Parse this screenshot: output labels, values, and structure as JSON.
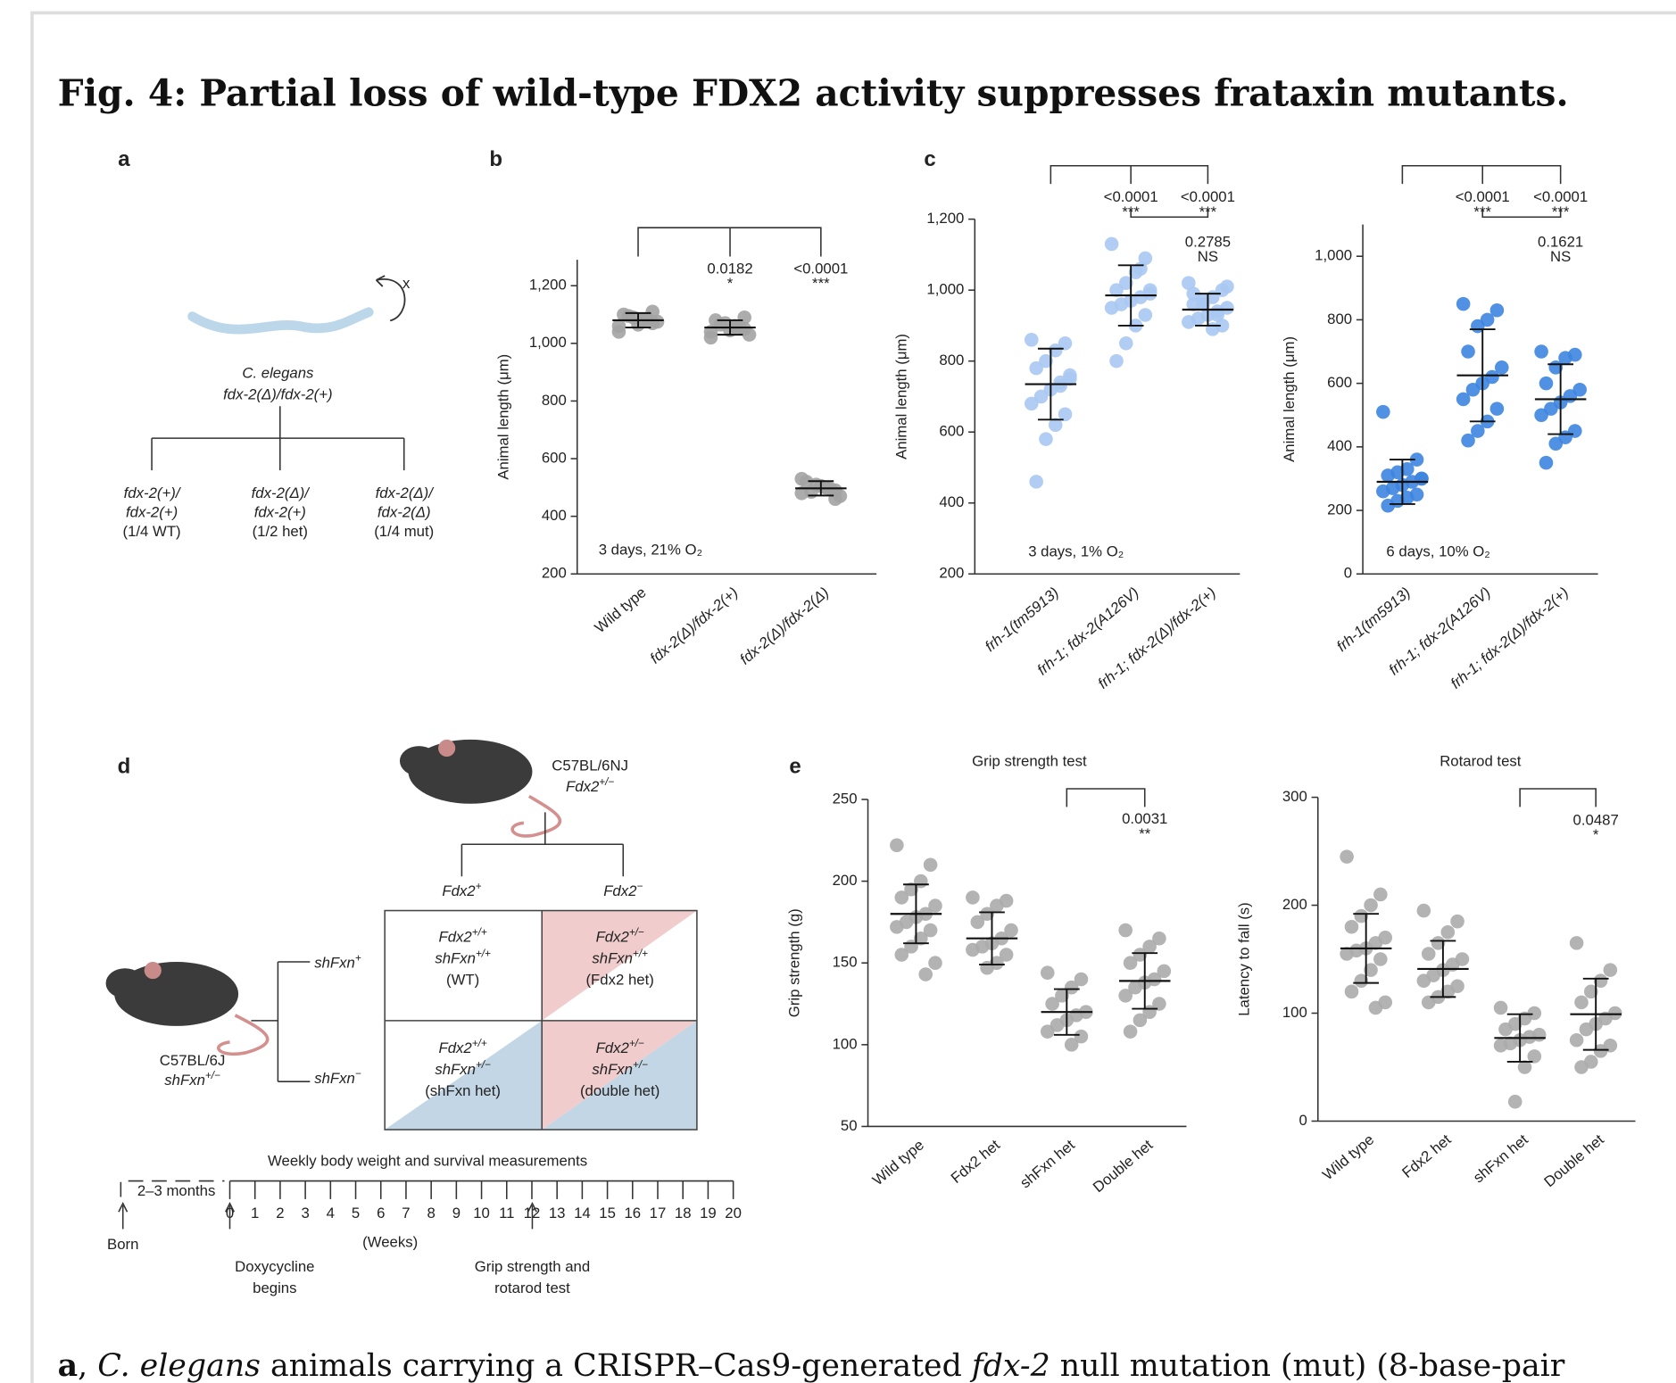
{
  "title": "Fig. 4: Partial loss of wild-type FDX2 activity suppresses frataxin mutants.",
  "panel_labels": [
    "a",
    "b",
    "c",
    "d",
    "e"
  ],
  "panel_a": {
    "organism": "C. elegans",
    "genotype": "fdx-2(Δ)/fdx-2(+)",
    "self_cross": "x",
    "offspring": [
      [
        "fdx-2(+)/",
        "fdx-2(+)",
        "(1/4 WT)"
      ],
      [
        "fdx-2(Δ)/",
        "fdx-2(+)",
        "(1/2 het)"
      ],
      [
        "fdx-2(Δ)/",
        "fdx-2(Δ)",
        "(1/4 mut)"
      ]
    ]
  },
  "chart_data": [
    {
      "type": "dot",
      "ylabel": "Animal length (μm)",
      "condition": "3 days, 21% O₂",
      "color": "#a3a3a3",
      "categories": [
        "Wild type",
        "fdx-2(Δ)/fdx-2(+)",
        "fdx-2(Δ)/fdx-2(Δ)"
      ],
      "values": [
        1080,
        1055,
        497
      ],
      "errors": [
        25,
        25,
        25
      ],
      "points": [
        [
          1060,
          1070,
          1080,
          1090,
          1100,
          1075,
          1085,
          1065,
          1095,
          1040,
          1110,
          1080
        ],
        [
          1040,
          1050,
          1060,
          1070,
          1080,
          1030,
          1055,
          1045,
          1065,
          1020,
          1090,
          1060
        ],
        [
          480,
          490,
          500,
          510,
          520,
          470,
          495,
          505,
          485,
          530,
          460,
          500
        ]
      ],
      "ylim": [
        200,
        1290
      ],
      "yticks": [
        200,
        400,
        600,
        800,
        {
          "value": 1000,
          "label": "1,000"
        },
        {
          "value": 1200,
          "label": "1,200"
        }
      ],
      "annotations": [
        {
          "p": "0.0182",
          "sig": "*"
        },
        {
          "p": "<0.0001",
          "sig": "***"
        }
      ]
    },
    {
      "type": "dot",
      "ylabel": "Animal length (μm)",
      "condition": "3 days, 1% O₂",
      "color": "#a9c8f2",
      "categories": [
        "frh-1(tm5913)",
        "frh-1; fdx-2(A126V)",
        "frh-1; fdx-2(Δ)/fdx-2(+)"
      ],
      "values": [
        735,
        985,
        945
      ],
      "errors": [
        100,
        85,
        45
      ],
      "points": [
        [
          860,
          850,
          830,
          800,
          780,
          760,
          740,
          720,
          700,
          680,
          650,
          620,
          580,
          460,
          750,
          730
        ],
        [
          1130,
          1090,
          1050,
          1020,
          1000,
          990,
          980,
          970,
          960,
          950,
          930,
          900,
          850,
          800,
          1000,
          1060
        ],
        [
          1020,
          1000,
          980,
          970,
          960,
          950,
          940,
          930,
          920,
          910,
          900,
          890,
          960,
          990,
          1010,
          930
        ]
      ],
      "ylim": [
        200,
        1200
      ],
      "yticks": [
        200,
        400,
        600,
        800,
        {
          "value": 1000,
          "label": "1,000"
        },
        {
          "value": 1200,
          "label": "1,200"
        }
      ],
      "annotations": [
        {
          "p": "<0.0001",
          "sig": "***"
        },
        {
          "p": "<0.0001",
          "sig": "***"
        },
        {
          "p": "0.2785",
          "sig": "NS"
        }
      ]
    },
    {
      "type": "dot",
      "ylabel": "Animal length (μm)",
      "condition": "6 days, 10% O₂",
      "color": "#3d85e0",
      "categories": [
        "frh-1(tm5913)",
        "frh-1; fdx-2(A126V)",
        "frh-1; fdx-2(Δ)/fdx-2(+)"
      ],
      "values": [
        290,
        625,
        550
      ],
      "errors": [
        70,
        145,
        110
      ],
      "points": [
        [
          510,
          360,
          330,
          320,
          310,
          300,
          290,
          280,
          270,
          260,
          250,
          240,
          230,
          215,
          300
        ],
        [
          850,
          830,
          800,
          780,
          700,
          650,
          620,
          600,
          580,
          550,
          520,
          480,
          450,
          420
        ],
        [
          700,
          690,
          680,
          650,
          600,
          580,
          560,
          540,
          520,
          500,
          450,
          430,
          410,
          350
        ]
      ],
      "ylim": [
        0,
        1100
      ],
      "yticks": [
        0,
        200,
        400,
        600,
        800,
        {
          "value": 1000,
          "label": "1,000"
        }
      ],
      "annotations": [
        {
          "p": "<0.0001",
          "sig": "***"
        },
        {
          "p": "<0.0001",
          "sig": "***"
        },
        {
          "p": "0.1621",
          "sig": "NS"
        }
      ]
    },
    {
      "type": "dot",
      "title": "Grip strength test",
      "ylabel": "Grip strength (g)",
      "color": "#ababab",
      "categories": [
        "Wild type",
        "Fdx2 het",
        "shFxn het",
        "Double het"
      ],
      "values": [
        180,
        165,
        120,
        139
      ],
      "errors": [
        18,
        16,
        14,
        17
      ],
      "points": [
        [
          222,
          210,
          200,
          195,
          190,
          185,
          180,
          178,
          175,
          172,
          170,
          165,
          160,
          155,
          150,
          143
        ],
        [
          190,
          188,
          185,
          180,
          175,
          170,
          165,
          162,
          160,
          158,
          155,
          150,
          147
        ],
        [
          144,
          140,
          135,
          130,
          125,
          120,
          118,
          115,
          112,
          108,
          105,
          100
        ],
        [
          170,
          165,
          160,
          155,
          150,
          145,
          140,
          138,
          135,
          130,
          125,
          120,
          115,
          108
        ]
      ],
      "ylim": [
        50,
        250
      ],
      "yticks": [
        50,
        100,
        150,
        200,
        250
      ],
      "annotations": [
        {
          "p": "0.0031",
          "sig": "**"
        }
      ]
    },
    {
      "type": "dot",
      "title": "Rotarod test",
      "ylabel": "Latency to fall (s)",
      "color": "#ababab",
      "categories": [
        "Wild type",
        "Fdx2 het",
        "shFxn het",
        "Double het"
      ],
      "values": [
        160,
        141,
        77,
        99
      ],
      "errors": [
        32,
        26,
        22,
        33
      ],
      "points": [
        [
          245,
          210,
          200,
          190,
          180,
          170,
          165,
          160,
          158,
          155,
          150,
          140,
          130,
          120,
          110,
          105
        ],
        [
          195,
          185,
          175,
          165,
          155,
          150,
          145,
          140,
          135,
          130,
          125,
          120,
          115,
          110
        ],
        [
          105,
          100,
          95,
          90,
          85,
          80,
          78,
          75,
          72,
          70,
          60,
          50,
          18
        ],
        [
          165,
          140,
          130,
          120,
          110,
          100,
          95,
          90,
          85,
          75,
          70,
          65,
          55,
          50
        ]
      ],
      "ylim": [
        0,
        300
      ],
      "yticks": [
        0,
        100,
        200,
        300
      ],
      "annotations": [
        {
          "p": "0.0487",
          "sig": "*"
        }
      ]
    }
  ],
  "panel_d": {
    "top_mouse": {
      "strain": "C57BL/6NJ",
      "genotype": {
        "main": "Fdx2",
        "sup": "+/−"
      }
    },
    "columns": [
      {
        "main": "Fdx2",
        "sup": "+"
      },
      {
        "main": "Fdx2",
        "sup": "−"
      }
    ],
    "left_mouse": {
      "strain": "C57BL/6J",
      "genotype": {
        "main": "shFxn",
        "sup": "+/−"
      }
    },
    "rows": [
      {
        "main": "shFxn",
        "sup": "+"
      },
      {
        "main": "shFxn",
        "sup": "−"
      }
    ],
    "cells": [
      [
        [
          {
            "main": "Fdx2",
            "sup": "+/+"
          },
          {
            "main": "shFxn",
            "sup": "+/+"
          },
          {
            "main": "(WT)"
          }
        ],
        [
          {
            "main": "Fdx2",
            "sup": "+/−"
          },
          {
            "main": "shFxn",
            "sup": "+/+"
          },
          {
            "main": "(Fdx2 het)"
          }
        ]
      ],
      [
        [
          {
            "main": "Fdx2",
            "sup": "+/+"
          },
          {
            "main": "shFxn",
            "sup": "+/−"
          },
          {
            "main": "(shFxn het)"
          }
        ],
        [
          {
            "main": "Fdx2",
            "sup": "+/−"
          },
          {
            "main": "shFxn",
            "sup": "+/−"
          },
          {
            "main": "(double het)"
          }
        ]
      ]
    ],
    "timeline": {
      "title": "Weekly body weight and survival measurements",
      "pre": "2–3 months",
      "weeks": [
        "0",
        "1",
        "2",
        "3",
        "4",
        "5",
        "6",
        "7",
        "8",
        "9",
        "10",
        "11",
        "12",
        "13",
        "14",
        "15",
        "16",
        "17",
        "18",
        "19",
        "20"
      ],
      "unit": "(Weeks)",
      "born": "Born",
      "start": [
        "Doxycycline",
        "begins"
      ],
      "test": [
        "Grip strength and",
        "rotarod test"
      ]
    }
  },
  "caption": [
    {
      "text": "a",
      "style": "bold"
    },
    {
      "text": ", ",
      "style": "normal"
    },
    {
      "text": "C. elegans",
      "style": "italic"
    },
    {
      "text": " animals carrying a CRISPR–Cas9-generated ",
      "style": "normal"
    },
    {
      "text": "fdx-2",
      "style": "italic"
    },
    {
      "text": " null mutation (mut) (8-base-pair",
      "style": "normal"
    }
  ]
}
